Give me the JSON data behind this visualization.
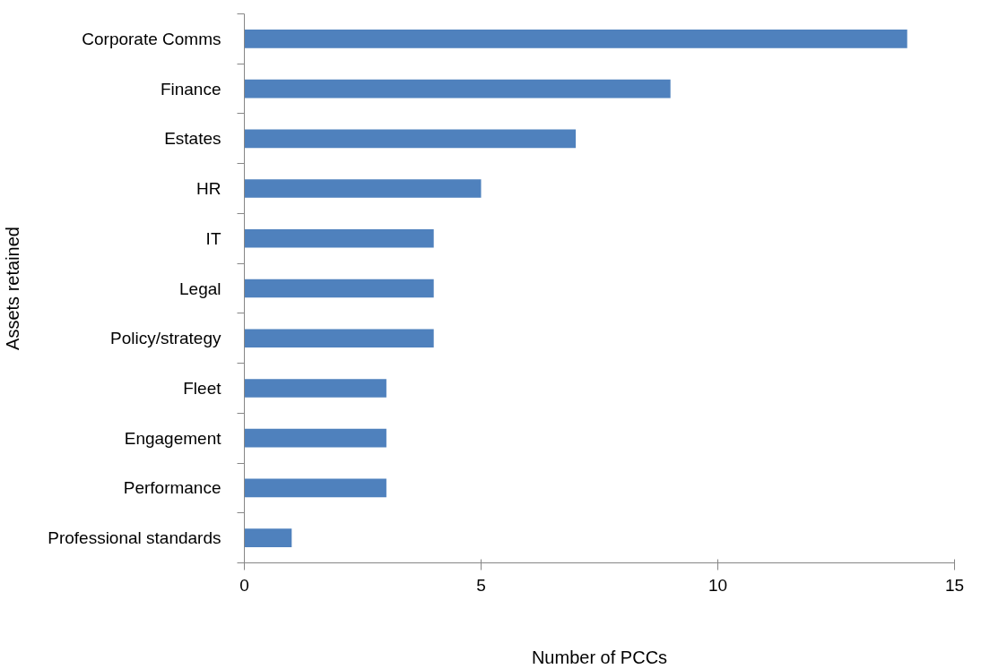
{
  "chart_data": {
    "type": "bar",
    "orientation": "horizontal",
    "xlabel": "Number of PCCs",
    "ylabel": "Assets retained",
    "categories": [
      "Corporate Comms",
      "Finance",
      "Estates",
      "HR",
      "IT",
      "Legal",
      "Policy/strategy",
      "Fleet",
      "Engagement",
      "Performance",
      "Professional standards"
    ],
    "values": [
      14,
      9,
      7,
      5,
      4,
      4,
      4,
      3,
      3,
      3,
      1
    ],
    "color": "#4f81bd",
    "xlim": [
      0,
      15
    ],
    "xticks": [
      0,
      5,
      10,
      15
    ],
    "grid": false
  }
}
